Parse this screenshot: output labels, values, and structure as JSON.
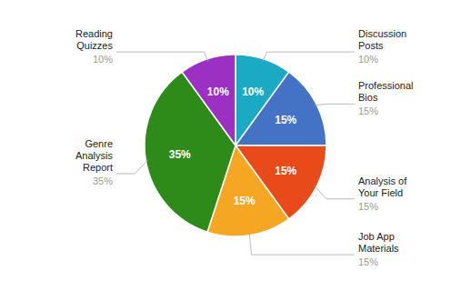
{
  "chart_data": {
    "type": "pie",
    "categories": [
      "Discussion\nPosts",
      "Professional\nBios",
      "Analysis of\nYour Field",
      "Job App\nMaterials",
      "Genre\nAnalysis\nReport",
      "Reading\nQuizzes"
    ],
    "values": [
      10,
      15,
      15,
      15,
      35,
      10
    ],
    "value_labels": [
      "10%",
      "15%",
      "15%",
      "15%",
      "35%",
      "10%"
    ],
    "colors": [
      "#1BAAC4",
      "#4472C4",
      "#E84A1A",
      "#F5A623",
      "#2E8B1A",
      "#9B30C2"
    ],
    "data_labels": true
  }
}
